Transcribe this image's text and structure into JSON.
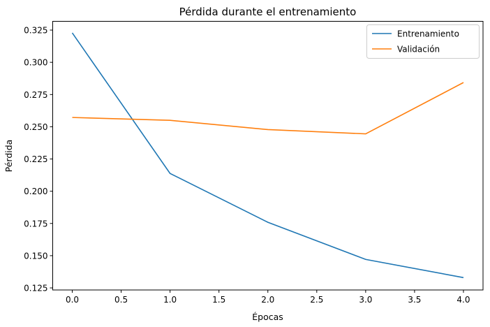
{
  "chart_data": {
    "type": "line",
    "title": "Pérdida durante el entrenamiento",
    "xlabel": "Épocas",
    "ylabel": "Pérdida",
    "x": [
      0,
      1,
      2,
      3,
      4
    ],
    "series": [
      {
        "name": "Entrenamiento",
        "color": "#1f77b4",
        "values": [
          0.3228,
          0.2138,
          0.1759,
          0.1471,
          0.133
        ]
      },
      {
        "name": "Validación",
        "color": "#ff7f0e",
        "values": [
          0.2572,
          0.255,
          0.2478,
          0.2445,
          0.2843
        ]
      }
    ],
    "xlim": [
      -0.2,
      4.2
    ],
    "ylim": [
      0.1234,
      0.3318
    ],
    "xticks": [
      "0.0",
      "0.5",
      "1.0",
      "1.5",
      "2.0",
      "2.5",
      "3.0",
      "3.5",
      "4.0"
    ],
    "yticks": [
      "0.125",
      "0.150",
      "0.175",
      "0.200",
      "0.225",
      "0.250",
      "0.275",
      "0.300",
      "0.325"
    ],
    "grid": false,
    "legend": "top-right"
  }
}
